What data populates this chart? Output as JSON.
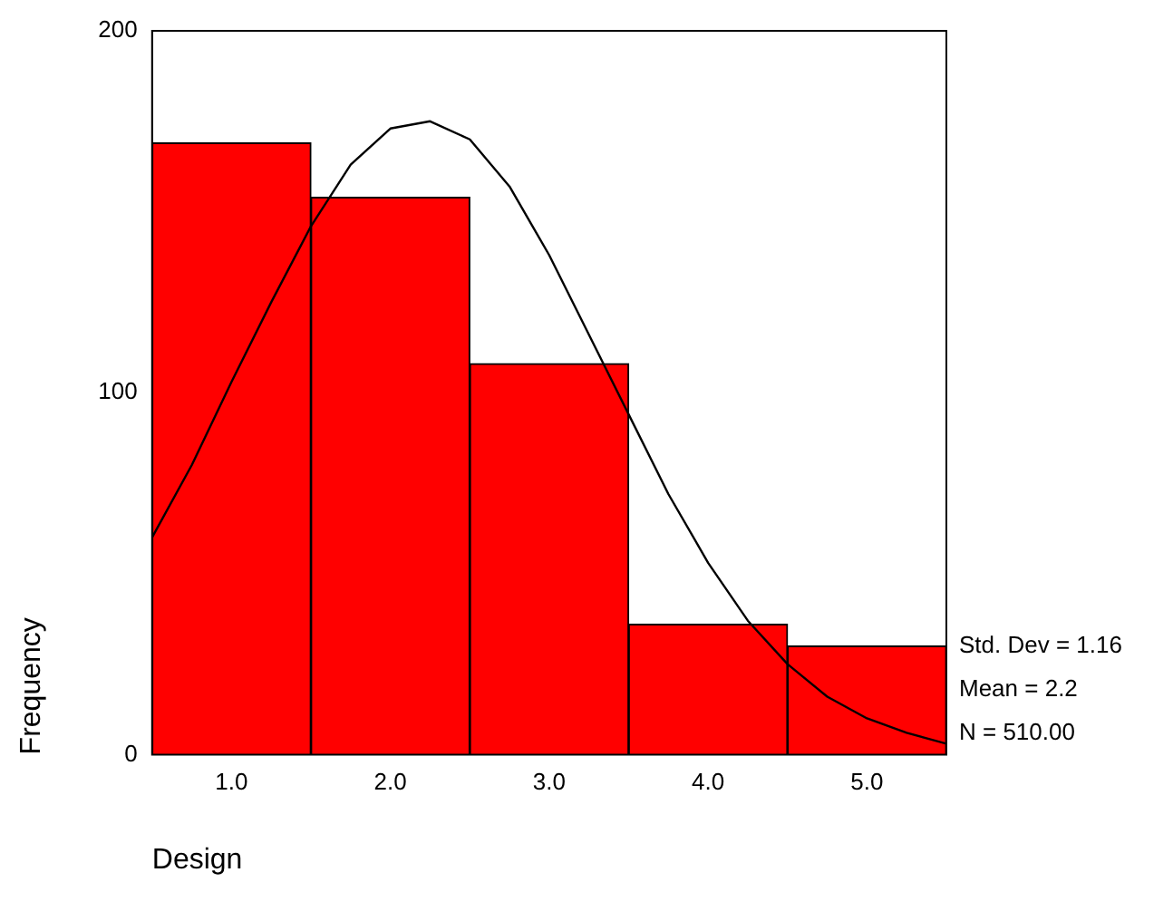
{
  "chart_data": {
    "type": "histogram",
    "xlabel": "Design",
    "ylabel": "Frequency",
    "bins": [
      0.5,
      1.5,
      2.5,
      3.5,
      4.5,
      5.5
    ],
    "values": [
      169,
      154,
      108,
      36,
      30
    ],
    "color": "#ff0000",
    "series": [
      {
        "type": "line",
        "color": "#000000",
        "x": [
          0.5,
          0.75,
          1.0,
          1.25,
          1.5,
          1.75,
          2.0,
          2.25,
          2.5,
          2.75,
          3.0,
          3.25,
          3.5,
          3.75,
          4.0,
          4.25,
          4.5,
          4.75,
          5.0,
          5.25,
          5.5
        ],
        "values": [
          60,
          80,
          103,
          125,
          146,
          163,
          173,
          175,
          170,
          157,
          138,
          116,
          94,
          72,
          53,
          37,
          25,
          16,
          10,
          6,
          3
        ]
      }
    ],
    "xlim": [
      0.5,
      5.5
    ],
    "xticks": [
      {
        "value": 1,
        "label": "1.0"
      },
      {
        "value": 2,
        "label": "2.0"
      },
      {
        "value": 3,
        "label": "3.0"
      },
      {
        "value": 4,
        "label": "4.0"
      },
      {
        "value": 5,
        "label": "5.0"
      }
    ],
    "ylim": [
      0,
      200
    ],
    "yticks": [
      0,
      100,
      200
    ],
    "grid": false,
    "legend": false,
    "marker": "none",
    "line_style": "solid",
    "annotations": [
      "Std. Dev = 1.16",
      "Mean = 2.2",
      "N = 510.00"
    ]
  }
}
